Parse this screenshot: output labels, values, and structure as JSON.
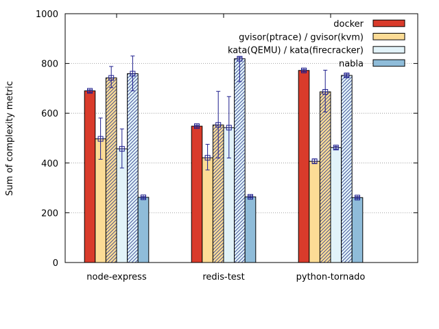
{
  "chart_data": {
    "type": "bar",
    "ylabel": "Sum of complexity metric",
    "xlabel": "",
    "ylim": [
      0,
      1000
    ],
    "yticks": [
      0,
      200,
      400,
      600,
      800,
      1000
    ],
    "grid": "horizontal dotted",
    "legend_position": "top-right",
    "categories": [
      "node-express",
      "redis-test",
      "python-tornado"
    ],
    "series": [
      {
        "name": "docker",
        "color": "#d93b2b",
        "pattern": "solid",
        "values": [
          690,
          548,
          772
        ],
        "err_low": [
          684,
          544,
          767
        ],
        "err_high": [
          694,
          552,
          776
        ],
        "legend": "docker"
      },
      {
        "name": "gvisor(ptrace)",
        "color": "#fcdc96",
        "pattern": "solid",
        "values": [
          497,
          421,
          407
        ],
        "err_low": [
          415,
          372,
          399
        ],
        "err_high": [
          581,
          475,
          416
        ],
        "legend": "gvisor(ptrace) / gvisor(kvm)"
      },
      {
        "name": "gvisor(kvm)",
        "color": "#fcdc96",
        "pattern": "hatched",
        "values": [
          742,
          553,
          686
        ],
        "err_low": [
          703,
          420,
          605
        ],
        "err_high": [
          788,
          688,
          773
        ],
        "legend": ""
      },
      {
        "name": "kata(QEMU)",
        "color": "#e2f3f9",
        "pattern": "solid",
        "values": [
          457,
          542,
          462
        ],
        "err_low": [
          380,
          420,
          456
        ],
        "err_high": [
          537,
          667,
          467
        ],
        "legend": "kata(QEMU) / kata(firecracker)"
      },
      {
        "name": "kata(firecracker)",
        "color": "#e2f3f9",
        "pattern": "hatched",
        "values": [
          759,
          819,
          752
        ],
        "err_low": [
          690,
          727,
          747
        ],
        "err_high": [
          830,
          825,
          757
        ],
        "legend": ""
      },
      {
        "name": "nabla",
        "color": "#8fbcd9",
        "pattern": "solid",
        "values": [
          262,
          264,
          261
        ],
        "err_low": [
          258,
          260,
          257
        ],
        "err_high": [
          265,
          268,
          265
        ],
        "legend": "nabla"
      }
    ]
  }
}
